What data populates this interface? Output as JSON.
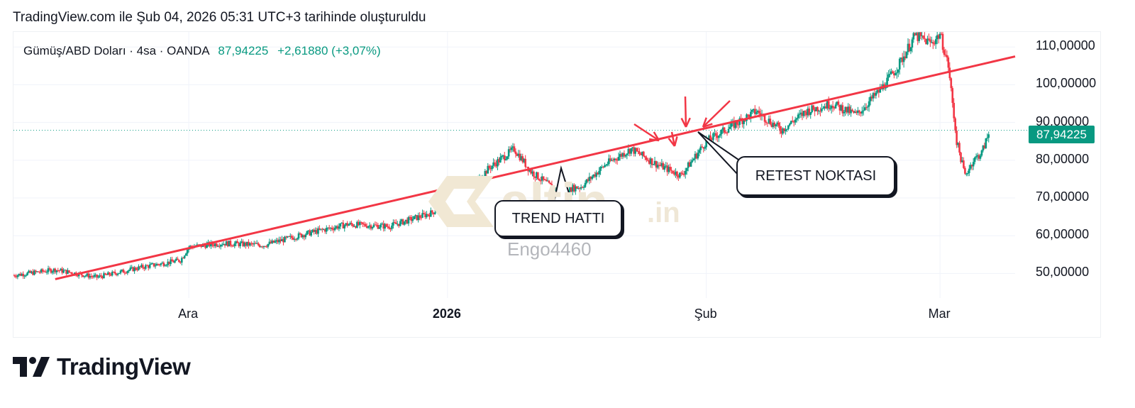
{
  "header": {
    "title": "TradingView.com ile Şub 04, 2026 05:31 UTC+3 tarihinde oluşturuldu"
  },
  "legend": {
    "symbol": "Gümüş/ABD Doları · 4sa · OANDA",
    "last": "87,94225",
    "change": "+2,61880 (+3,07%)"
  },
  "price_tag": "87,94225",
  "watermark": {
    "brand": "altin",
    "brand_suffix": ".in",
    "user": "Engo4460"
  },
  "callouts": {
    "trend": "TREND HATTI",
    "retest": "RETEST NOKTASI"
  },
  "footer": {
    "brand": "TradingView"
  },
  "colors": {
    "up": "#089981",
    "down": "#f23645",
    "trend_line": "#f23645",
    "price_tag": "#089981"
  },
  "chart_data": {
    "type": "candlestick",
    "symbol": "Gümüş/ABD Doları · 4sa · OANDA",
    "y_tick_labels": [
      "110,00000",
      "100,00000",
      "90,00000",
      "80,00000",
      "70,00000",
      "60,00000",
      "50,00000"
    ],
    "y_ticks": [
      110,
      100,
      90,
      80,
      70,
      60,
      50
    ],
    "ylim": [
      43.5,
      114
    ],
    "x_tick_labels": [
      "Ara",
      "2026",
      "Şub",
      "Mar"
    ],
    "x_ticks": [
      "2025-12-01",
      "2026-01-01",
      "2026-02-01",
      "2026-03-01"
    ],
    "xlim": [
      "2025-11-10",
      "2026-03-10"
    ],
    "last_price": 87.94225,
    "close_path": [
      [
        "2025-11-10",
        49.5
      ],
      [
        "2025-11-15",
        51.0
      ],
      [
        "2025-11-20",
        49.0
      ],
      [
        "2025-11-25",
        51.5
      ],
      [
        "2025-11-30",
        53.5
      ],
      [
        "2025-12-01",
        57.0
      ],
      [
        "2025-12-05",
        58.0
      ],
      [
        "2025-12-10",
        57.5
      ],
      [
        "2025-12-15",
        60.5
      ],
      [
        "2025-12-20",
        63.0
      ],
      [
        "2025-12-25",
        62.5
      ],
      [
        "2025-12-30",
        66.0
      ],
      [
        "2026-01-03",
        71.0
      ],
      [
        "2026-01-06",
        78.0
      ],
      [
        "2026-01-09",
        83.0
      ],
      [
        "2026-01-11",
        77.0
      ],
      [
        "2026-01-14",
        72.0
      ],
      [
        "2026-01-17",
        73.0
      ],
      [
        "2026-01-20",
        79.0
      ],
      [
        "2026-01-23",
        83.0
      ],
      [
        "2026-01-26",
        79.0
      ],
      [
        "2026-01-29",
        76.0
      ],
      [
        "2026-02-01",
        85.0
      ],
      [
        "2026-02-04",
        89.0
      ],
      [
        "2026-02-07",
        93.0
      ],
      [
        "2026-02-10",
        88.0
      ],
      [
        "2026-02-13",
        93.0
      ],
      [
        "2026-02-16",
        95.0
      ],
      [
        "2026-02-19",
        92.0
      ],
      [
        "2026-02-22",
        99.0
      ],
      [
        "2026-02-24",
        105.0
      ],
      [
        "2026-02-26",
        113.0
      ],
      [
        "2026-02-28",
        111.0
      ],
      [
        "2026-03-01",
        113.5
      ],
      [
        "2026-03-02",
        105.0
      ],
      [
        "2026-03-03",
        85.0
      ],
      [
        "2026-03-04",
        76.0
      ],
      [
        "2026-03-05",
        80.0
      ],
      [
        "2026-03-06",
        82.0
      ],
      [
        "2026-03-07",
        87.94
      ]
    ],
    "drawings": {
      "trend_line": {
        "from": [
          "2025-11-15",
          48.5
        ],
        "to": [
          "2026-03-10",
          107.5
        ]
      },
      "arrows_count": 4
    }
  }
}
